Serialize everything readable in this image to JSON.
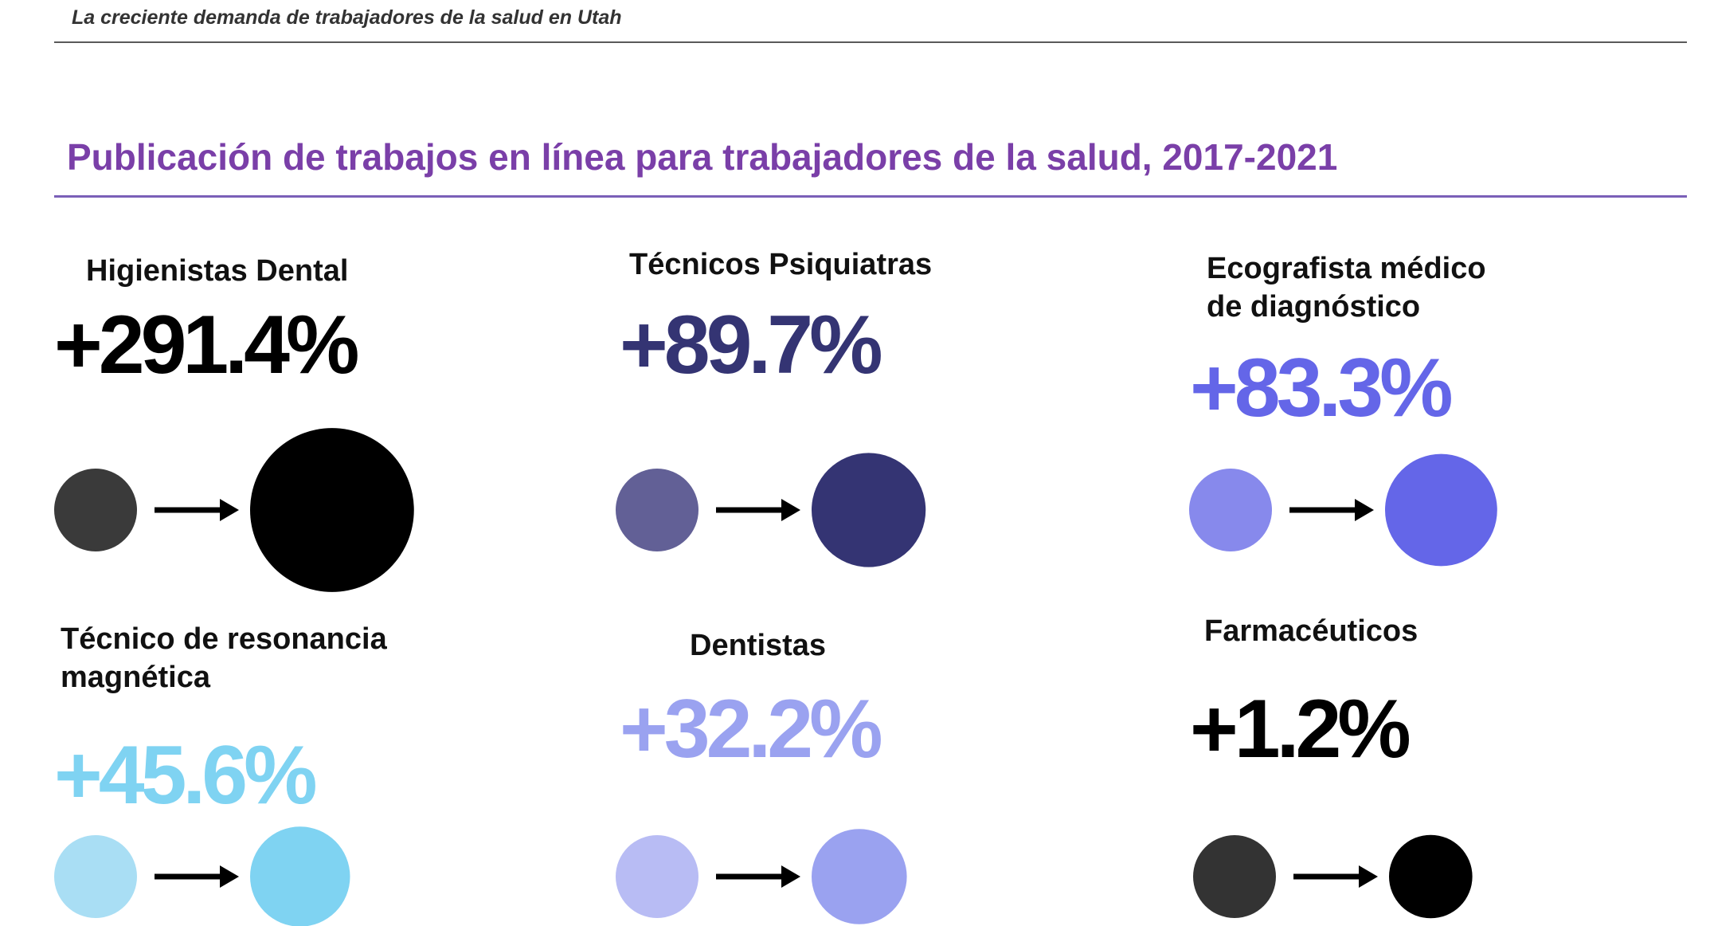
{
  "header": {
    "subtitle": "La creciente demanda de trabajadores de la salud en Utah"
  },
  "chart_title": "Publicación de trabajos en línea para trabajadores de la salud, 2017-2021",
  "chart_data": {
    "type": "bubble-comparison",
    "title": "Publicación de trabajos en línea para trabajadores de la salud, 2017-2021",
    "x": [
      "2017",
      "2021"
    ],
    "items": [
      {
        "label": "Higienistas Dental",
        "change": "+291.4%",
        "value": 291.4,
        "color_start": "#3a3a3a",
        "color_end": "#000000",
        "pct_color": "#000000"
      },
      {
        "label": "Técnicos Psiquiatras",
        "change": "+89.7%",
        "value": 89.7,
        "color_start": "#626096",
        "color_end": "#343473",
        "pct_color": "#343473"
      },
      {
        "label": "Ecografista médico\nde diagnóstico",
        "change": "+83.3%",
        "value": 83.3,
        "color_start": "#8789ec",
        "color_end": "#6466e8",
        "pct_color": "#6466e8"
      },
      {
        "label": "Técnico de resonancia\n magnética",
        "change": "+45.6%",
        "value": 45.6,
        "color_start": "#a9def4",
        "color_end": "#7fd3f2",
        "pct_color": "#7fd3f2"
      },
      {
        "label": "Dentistas",
        "change": "+32.2%",
        "value": 32.2,
        "color_start": "#b8bcf4",
        "color_end": "#9aa2f0",
        "pct_color": "#9aa2f0"
      },
      {
        "label": "Farmacéuticos",
        "change": "+1.2%",
        "value": 1.2,
        "color_start": "#333333",
        "color_end": "#000000",
        "pct_color": "#000000"
      }
    ]
  }
}
